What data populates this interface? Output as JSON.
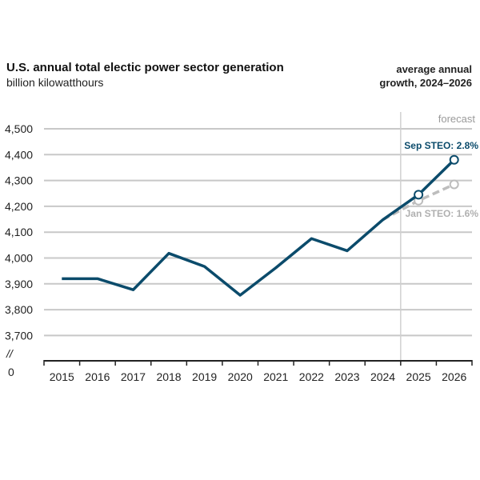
{
  "chart_data": {
    "type": "line",
    "title": "U.S. annual total electic power sector generation",
    "subtitle": "billion kilowatthours",
    "note": [
      "average annual",
      "growth, 2024–2026"
    ],
    "forecast_label": "forecast",
    "x": [
      "2015",
      "2016",
      "2017",
      "2018",
      "2019",
      "2020",
      "2021",
      "2022",
      "2023",
      "2024",
      "2025",
      "2026"
    ],
    "yticks": [
      "4,500",
      "4,400",
      "4,300",
      "4,200",
      "4,100",
      "4,000",
      "3,900",
      "3,800",
      "3,700"
    ],
    "ytick_values": [
      4500,
      4400,
      4300,
      4200,
      4100,
      4000,
      3900,
      3800,
      3700
    ],
    "y_break_label": "//",
    "y_zero_label": "0",
    "ylim": [
      3600,
      4500
    ],
    "forecast_start": "2024",
    "series": [
      {
        "name": "Sep STEO",
        "label": "Sep STEO: 2.8%",
        "color": "#0b4b6b",
        "values": [
          3920,
          3920,
          3877,
          4018,
          3967,
          3856,
          3962,
          4075,
          4028,
          4148,
          4245,
          4380
        ]
      },
      {
        "name": "Jan STEO",
        "label": "Jan STEO: 1.6%",
        "color": "#bdbdbd",
        "x": [
          "2024",
          "2025",
          "2026"
        ],
        "values": [
          4148,
          4222,
          4285
        ]
      }
    ]
  }
}
